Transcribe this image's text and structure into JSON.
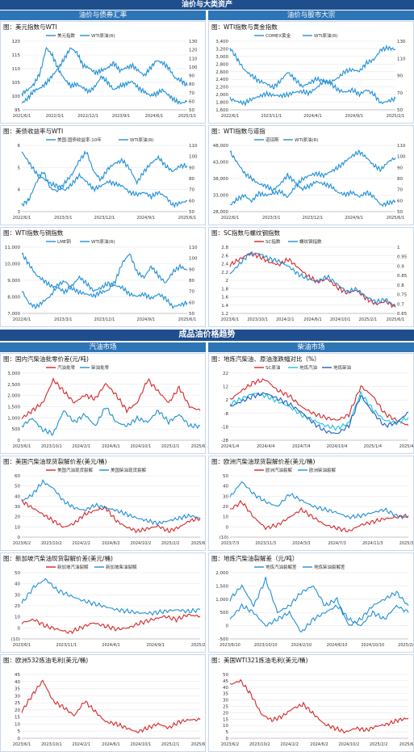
{
  "sections": {
    "top_header": "油价与大类资产",
    "top_left": "油价与债券汇率",
    "top_right": "油价与股市大宗",
    "mid_header": "成品油价格趋势",
    "mid_left": "汽油市场",
    "mid_right": "柴油市场"
  },
  "colors": {
    "header": "#1f4e8c",
    "subheader": "#2e75b6",
    "red": "#d62728",
    "blue": "#1f8fd6",
    "grid": "#e3e3e3"
  },
  "chart_data": [
    {
      "id": "c1",
      "type": "line",
      "title": "图：美元指数与WTI",
      "legend": [
        "美元指数",
        "WTI原油(R)"
      ],
      "left_ticks": [
        "120",
        "115",
        "110",
        "105",
        "100",
        "95"
      ],
      "right_ticks": [
        "130",
        "120",
        "110",
        "100",
        "90",
        "80",
        "70",
        "60",
        "50"
      ],
      "x_ticks": [
        "2021/6/1",
        "2022/3/1",
        "2022/12/1",
        "2023/9/1",
        "2024/6/1",
        "2025/3/1"
      ],
      "series": [
        {
          "name": "美元指数",
          "axis": "left",
          "values": [
            90,
            92,
            95,
            96,
            98,
            101,
            104,
            108,
            112,
            110,
            105,
            104,
            102,
            103,
            104,
            106,
            103,
            104,
            105,
            103,
            101,
            104,
            107,
            106,
            104,
            100,
            99,
            97
          ]
        },
        {
          "name": "WTI原油(R)",
          "axis": "right",
          "values": [
            70,
            74,
            80,
            92,
            118,
            110,
            95,
            85,
            78,
            80,
            76,
            72,
            78,
            88,
            82,
            74,
            78,
            80,
            83,
            76,
            72,
            68,
            70,
            74,
            68,
            63,
            60,
            62
          ]
        }
      ]
    },
    {
      "id": "c2",
      "type": "line",
      "title": "图：WTI指数与黄金指数",
      "legend": [
        "COMEX黄金",
        "WTI原油(R)"
      ],
      "left_ticks": [
        "3,400",
        "3,200",
        "3,000",
        "2,800",
        "2,600",
        "2,400",
        "2,200",
        "2,000",
        "1,800",
        "1,600"
      ],
      "right_ticks": [
        "130",
        "110",
        "90",
        "70",
        "50"
      ],
      "x_ticks": [
        "2022/6/1",
        "2023/11/1",
        "2024/4/1",
        "2024/9/1",
        "2025/2/1"
      ],
      "series": [
        {
          "name": "COMEX黄金",
          "axis": "left",
          "values": [
            1830,
            1750,
            1700,
            1820,
            1900,
            1980,
            1940,
            1920,
            1950,
            2030,
            2050,
            2000,
            2150,
            2350,
            2330,
            2450,
            2650,
            2700,
            2650,
            2900,
            3000,
            3300,
            3350,
            3300
          ]
        },
        {
          "name": "WTI原油(R)",
          "axis": "right",
          "values": [
            110,
            100,
            90,
            85,
            80,
            78,
            74,
            80,
            88,
            82,
            75,
            78,
            82,
            80,
            78,
            72,
            70,
            72,
            68,
            72,
            68,
            60,
            62,
            64
          ]
        }
      ]
    },
    {
      "id": "c3",
      "type": "line",
      "title": "图：美债收益率与WTI",
      "legend": [
        "美国:国债收益率:10年",
        "WTI原油(R)"
      ],
      "left_ticks": [
        "6",
        "5",
        "4",
        "3"
      ],
      "right_ticks": [
        "110",
        "100",
        "90",
        "80",
        "70",
        "60",
        "50"
      ],
      "x_ticks": [
        "2022/6/1",
        "2023/3/1",
        "2023/12/1",
        "2024/9/1",
        "2025/6/1"
      ],
      "series": [
        {
          "name": "美国:国债收益率:10年",
          "axis": "left",
          "values": [
            3.0,
            3.2,
            3.8,
            4.2,
            3.6,
            3.5,
            3.8,
            4.1,
            4.6,
            4.9,
            4.2,
            3.9,
            4.3,
            4.5,
            4.6,
            4.3,
            3.8,
            4.2,
            4.5,
            4.7,
            4.4,
            4.2,
            4.4,
            4.4
          ]
        },
        {
          "name": "WTI原油(R)",
          "axis": "right",
          "values": [
            110,
            100,
            90,
            85,
            80,
            78,
            74,
            80,
            88,
            82,
            75,
            78,
            82,
            80,
            78,
            72,
            70,
            72,
            68,
            72,
            68,
            60,
            62,
            64
          ]
        }
      ]
    },
    {
      "id": "c4",
      "type": "line",
      "title": "图：WTI指数与道指",
      "legend": [
        "道琼斯",
        "WTI原油(R)"
      ],
      "left_ticks": [
        "48,000",
        "43,000",
        "38,000",
        "33,000",
        "28,000"
      ],
      "right_ticks": [
        "110",
        "100",
        "90",
        "80",
        "70",
        "60",
        "50"
      ],
      "x_ticks": [
        "2022/6/1",
        "2023/3/1",
        "2023/12/1",
        "2024/9/1",
        "2025/6/1"
      ],
      "series": [
        {
          "name": "道琼斯",
          "axis": "left",
          "values": [
            31000,
            32500,
            33500,
            32000,
            34000,
            33500,
            34000,
            34500,
            33000,
            35500,
            37500,
            38500,
            39000,
            38500,
            39500,
            40500,
            42000,
            43500,
            44500,
            43000,
            41000,
            40000,
            42000,
            43000
          ]
        },
        {
          "name": "WTI原油(R)",
          "axis": "right",
          "values": [
            110,
            100,
            90,
            85,
            80,
            78,
            74,
            80,
            88,
            82,
            75,
            78,
            82,
            80,
            78,
            72,
            70,
            72,
            68,
            72,
            68,
            60,
            62,
            64
          ]
        }
      ]
    },
    {
      "id": "c5",
      "type": "line",
      "title": "图：WTI指数与铜指数",
      "legend": [
        "LME铜",
        "WTI原油(R)"
      ],
      "left_ticks": [
        "11,000",
        "10,000",
        "9,000",
        "8,000",
        "7,000"
      ],
      "right_ticks": [
        "110",
        "100",
        "90",
        "80",
        "70",
        "60",
        "50"
      ],
      "x_ticks": [
        "2022/6/1",
        "2023/3/1",
        "2023/12/1",
        "2024/9/1",
        "2025/6/1"
      ],
      "series": [
        {
          "name": "LME铜",
          "axis": "left",
          "values": [
            8500,
            7800,
            7600,
            7900,
            8200,
            8800,
            9000,
            8600,
            8400,
            8300,
            8200,
            8400,
            8500,
            9000,
            10000,
            10500,
            9500,
            9200,
            9800,
            9300,
            8900,
            9500,
            9800,
            9600
          ]
        },
        {
          "name": "WTI原油(R)",
          "axis": "right",
          "values": [
            110,
            100,
            90,
            85,
            80,
            78,
            74,
            80,
            88,
            82,
            75,
            78,
            82,
            80,
            78,
            72,
            70,
            72,
            68,
            72,
            68,
            60,
            62,
            64
          ]
        }
      ]
    },
    {
      "id": "c6",
      "type": "line",
      "title": "图：SC指数与螺纹钢指数",
      "legend": [
        "SC指数",
        "螺纹钢指数"
      ],
      "left_ticks": [
        "2.8",
        "2.6",
        "2.4",
        "2.2",
        "2",
        "1.8",
        "1.6",
        "1.4",
        "1.2"
      ],
      "right_ticks": [
        "1",
        "0.95",
        "0.9",
        "0.85",
        "0.8",
        "0.75",
        "0.7",
        "0.65"
      ],
      "x_ticks": [
        "2023/6/1",
        "2023/10/1",
        "2024/2/1",
        "2024/6/1",
        "2024/10/1",
        "2025/2/1",
        "2025/6/1"
      ],
      "series": [
        {
          "name": "SC指数",
          "axis": "left",
          "values": [
            2.2,
            2.3,
            2.4,
            2.35,
            2.25,
            2.2,
            2.3,
            2.15,
            2.0,
            1.9,
            1.95,
            1.8,
            1.7,
            1.75,
            1.6,
            1.5,
            1.55,
            1.45
          ]
        },
        {
          "name": "螺纹钢指数",
          "axis": "right",
          "values": [
            0.82,
            0.86,
            0.9,
            0.9,
            0.88,
            0.87,
            0.85,
            0.82,
            0.8,
            0.79,
            0.81,
            0.78,
            0.75,
            0.76,
            0.73,
            0.71,
            0.72,
            0.69
          ]
        }
      ]
    },
    {
      "id": "c7",
      "type": "line",
      "title": "图：国内汽柴油批零价差(元/吨)",
      "legend": [
        "汽油批零",
        "柴油批零"
      ],
      "left_ticks": [
        "3,000",
        "2,500",
        "2,000",
        "1,500",
        "1,000",
        "500",
        "0"
      ],
      "x_ticks": [
        "2023/6/1",
        "2023/10/1",
        "2024/2/1",
        "2024/6/1",
        "2024/10/1",
        "2025/2/1",
        "2025/6/1"
      ],
      "series": [
        {
          "name": "汽油批零",
          "axis": "left",
          "values": [
            1100,
            1300,
            1500,
            2100,
            1800,
            1500,
            1700,
            1600,
            2000,
            1700,
            1300,
            1500,
            2100,
            1800,
            1500,
            1900,
            1400,
            1300
          ]
        },
        {
          "name": "柴油批零",
          "axis": "left",
          "values": [
            900,
            1100,
            800,
            700,
            1300,
            1000,
            1200,
            900,
            1400,
            1000,
            900,
            1100,
            1000,
            1300,
            1000,
            1200,
            900,
            900
          ]
        }
      ]
    },
    {
      "id": "c8",
      "type": "line",
      "title": "图：地炼汽柴油、原油涨跌幅对比（%）",
      "legend": [
        "SC原油",
        "地炼汽油",
        "地炼柴油"
      ],
      "left_ticks": [
        "22",
        "12",
        "2",
        "-8",
        "-18",
        "-28"
      ],
      "x_ticks": [
        "2024/1/4",
        "2024/4/4",
        "2024/7/4",
        "2024/10/4",
        "2025/1/4",
        "2025/4/4"
      ],
      "series": [
        {
          "name": "SC原油",
          "axis": "left",
          "values": [
            5,
            12,
            18,
            20,
            12,
            8,
            0,
            -5,
            -8,
            -10,
            -6,
            15,
            8,
            -5,
            -10,
            -14
          ]
        },
        {
          "name": "地炼汽油",
          "axis": "left",
          "values": [
            2,
            6,
            10,
            8,
            4,
            0,
            -6,
            -10,
            -14,
            -16,
            -12,
            10,
            -2,
            -10,
            -12,
            -8
          ]
        },
        {
          "name": "地炼柴油",
          "axis": "left",
          "values": [
            0,
            4,
            8,
            10,
            6,
            2,
            -4,
            -12,
            -18,
            -20,
            -14,
            8,
            -4,
            -14,
            -12,
            -4
          ]
        }
      ]
    },
    {
      "id": "c9",
      "type": "line",
      "title": "图：美国汽柴油现货裂解价差(美元/桶)",
      "legend": [
        "美国汽油现货裂解",
        "美国柴油现货裂解"
      ],
      "left_ticks": [
        "60",
        "50",
        "40",
        "30",
        "20",
        "10",
        "0"
      ],
      "x_ticks": [
        "2023/6/2",
        "2023/10/2",
        "2024/2/2",
        "2024/6/2",
        "2024/10/2",
        "2025/2/2",
        "2025/6/2"
      ],
      "series": [
        {
          "name": "美国汽油现货裂解",
          "axis": "left",
          "values": [
            35,
            30,
            25,
            20,
            15,
            18,
            25,
            28,
            30,
            20,
            15,
            12,
            14,
            16,
            12,
            15,
            20,
            22
          ]
        },
        {
          "name": "美国柴油现货裂解",
          "axis": "left",
          "values": [
            35,
            40,
            50,
            45,
            35,
            30,
            28,
            32,
            30,
            28,
            25,
            22,
            20,
            18,
            20,
            22,
            24,
            22
          ]
        }
      ]
    },
    {
      "id": "c10",
      "type": "line",
      "title": "图：欧洲汽柴油现货裂解价差(美元/桶)",
      "legend": [
        "欧洲汽油裂解",
        "欧洲柴油裂解"
      ],
      "left_ticks": [
        "50",
        "40",
        "30",
        "20",
        "10",
        "0",
        "(10)"
      ],
      "x_ticks": [
        "2023/7/3",
        "2023/11/3",
        "2024/3/3",
        "2024/7/3",
        "2024/11/3",
        "2025/3/3"
      ],
      "series": [
        {
          "name": "欧洲汽油裂解",
          "axis": "left",
          "values": [
            20,
            25,
            15,
            8,
            10,
            15,
            20,
            15,
            10,
            8,
            6,
            10,
            12,
            14,
            15,
            16
          ]
        },
        {
          "name": "欧洲柴油裂解",
          "axis": "left",
          "values": [
            28,
            38,
            30,
            25,
            22,
            30,
            26,
            22,
            20,
            18,
            15,
            16,
            18,
            20,
            16,
            15
          ]
        }
      ]
    },
    {
      "id": "c11",
      "type": "line",
      "title": "图：新加坡汽柴油现货裂解价差(美元/桶)",
      "legend": [
        "新加坡汽油裂解",
        "新加坡柴油裂解"
      ],
      "left_ticks": [
        "50",
        "40",
        "30",
        "20",
        "10",
        "0",
        "(10)"
      ],
      "x_ticks": [
        "2023/6/1",
        "2023/11/1",
        "2024/4/1",
        "2024/9/1",
        "2025/2/1"
      ],
      "series": [
        {
          "name": "新加坡汽油裂解",
          "axis": "left",
          "values": [
            8,
            10,
            6,
            4,
            2,
            5,
            8,
            6,
            4,
            5,
            8,
            10,
            12,
            10,
            13,
            12
          ]
        },
        {
          "name": "新加坡柴油裂解",
          "axis": "left",
          "values": [
            20,
            30,
            35,
            28,
            25,
            22,
            20,
            18,
            16,
            15,
            14,
            14,
            15,
            16,
            15,
            16
          ]
        }
      ]
    },
    {
      "id": "c12",
      "type": "line",
      "title": "图：地炼汽柴油裂解差（元/吨）",
      "legend": [
        "地炼汽油裂解差",
        "地炼柴油裂解差"
      ],
      "left_ticks": [
        "2,000",
        "1,500",
        "1,000",
        "500",
        "0",
        "-500"
      ],
      "x_ticks": [
        "2023/6/10",
        "2023/10/10",
        "2024/2/10",
        "2024/6/10",
        "2024/10/10",
        "2025/2/10"
      ],
      "series": [
        {
          "name": "地炼汽油裂解差",
          "axis": "left",
          "values": [
            1000,
            1200,
            900,
            1300,
            800,
            900,
            1100,
            1200,
            900,
            1000,
            600,
            700,
            900,
            1000,
            1100,
            900
          ]
        },
        {
          "name": "地炼柴油裂解差",
          "axis": "left",
          "values": [
            700,
            900,
            800,
            600,
            700,
            800,
            500,
            700,
            800,
            900,
            700,
            600,
            800,
            700,
            900,
            800
          ]
        }
      ]
    },
    {
      "id": "c13",
      "type": "line",
      "title": "图：欧洲532炼油毛利(美元/桶)",
      "legend": [],
      "left_ticks": [
        "45",
        "40",
        "35",
        "30",
        "25",
        "20",
        "15",
        "10",
        "5",
        "0"
      ],
      "x_ticks": [
        "2023/6/1",
        "2023/10/1",
        "2024/2/1",
        "2024/6/1",
        "2024/10/1",
        "2025/2/1",
        "2025/6/1"
      ],
      "series": [
        {
          "name": "",
          "axis": "left",
          "values": [
            20,
            28,
            35,
            25,
            22,
            18,
            25,
            20,
            15,
            14,
            12,
            10,
            12,
            14,
            12,
            15,
            16,
            16
          ]
        }
      ]
    },
    {
      "id": "c14",
      "type": "line",
      "title": "图：美国WTI321炼油毛利(美元/桶)",
      "legend": [],
      "left_ticks": [
        "50",
        "45",
        "40",
        "35",
        "30",
        "25",
        "20",
        "15",
        "10",
        "5",
        "0"
      ],
      "x_ticks": [
        "2023/6/2",
        "2023/10/2",
        "2024/2/2",
        "2024/6/2",
        "2024/10/2",
        "2025/2/2",
        "2025/6/2"
      ],
      "series": [
        {
          "name": "",
          "axis": "left",
          "values": [
            40,
            42,
            35,
            25,
            22,
            24,
            28,
            30,
            25,
            20,
            18,
            16,
            18,
            17,
            19,
            20,
            22,
            23
          ]
        }
      ]
    }
  ]
}
